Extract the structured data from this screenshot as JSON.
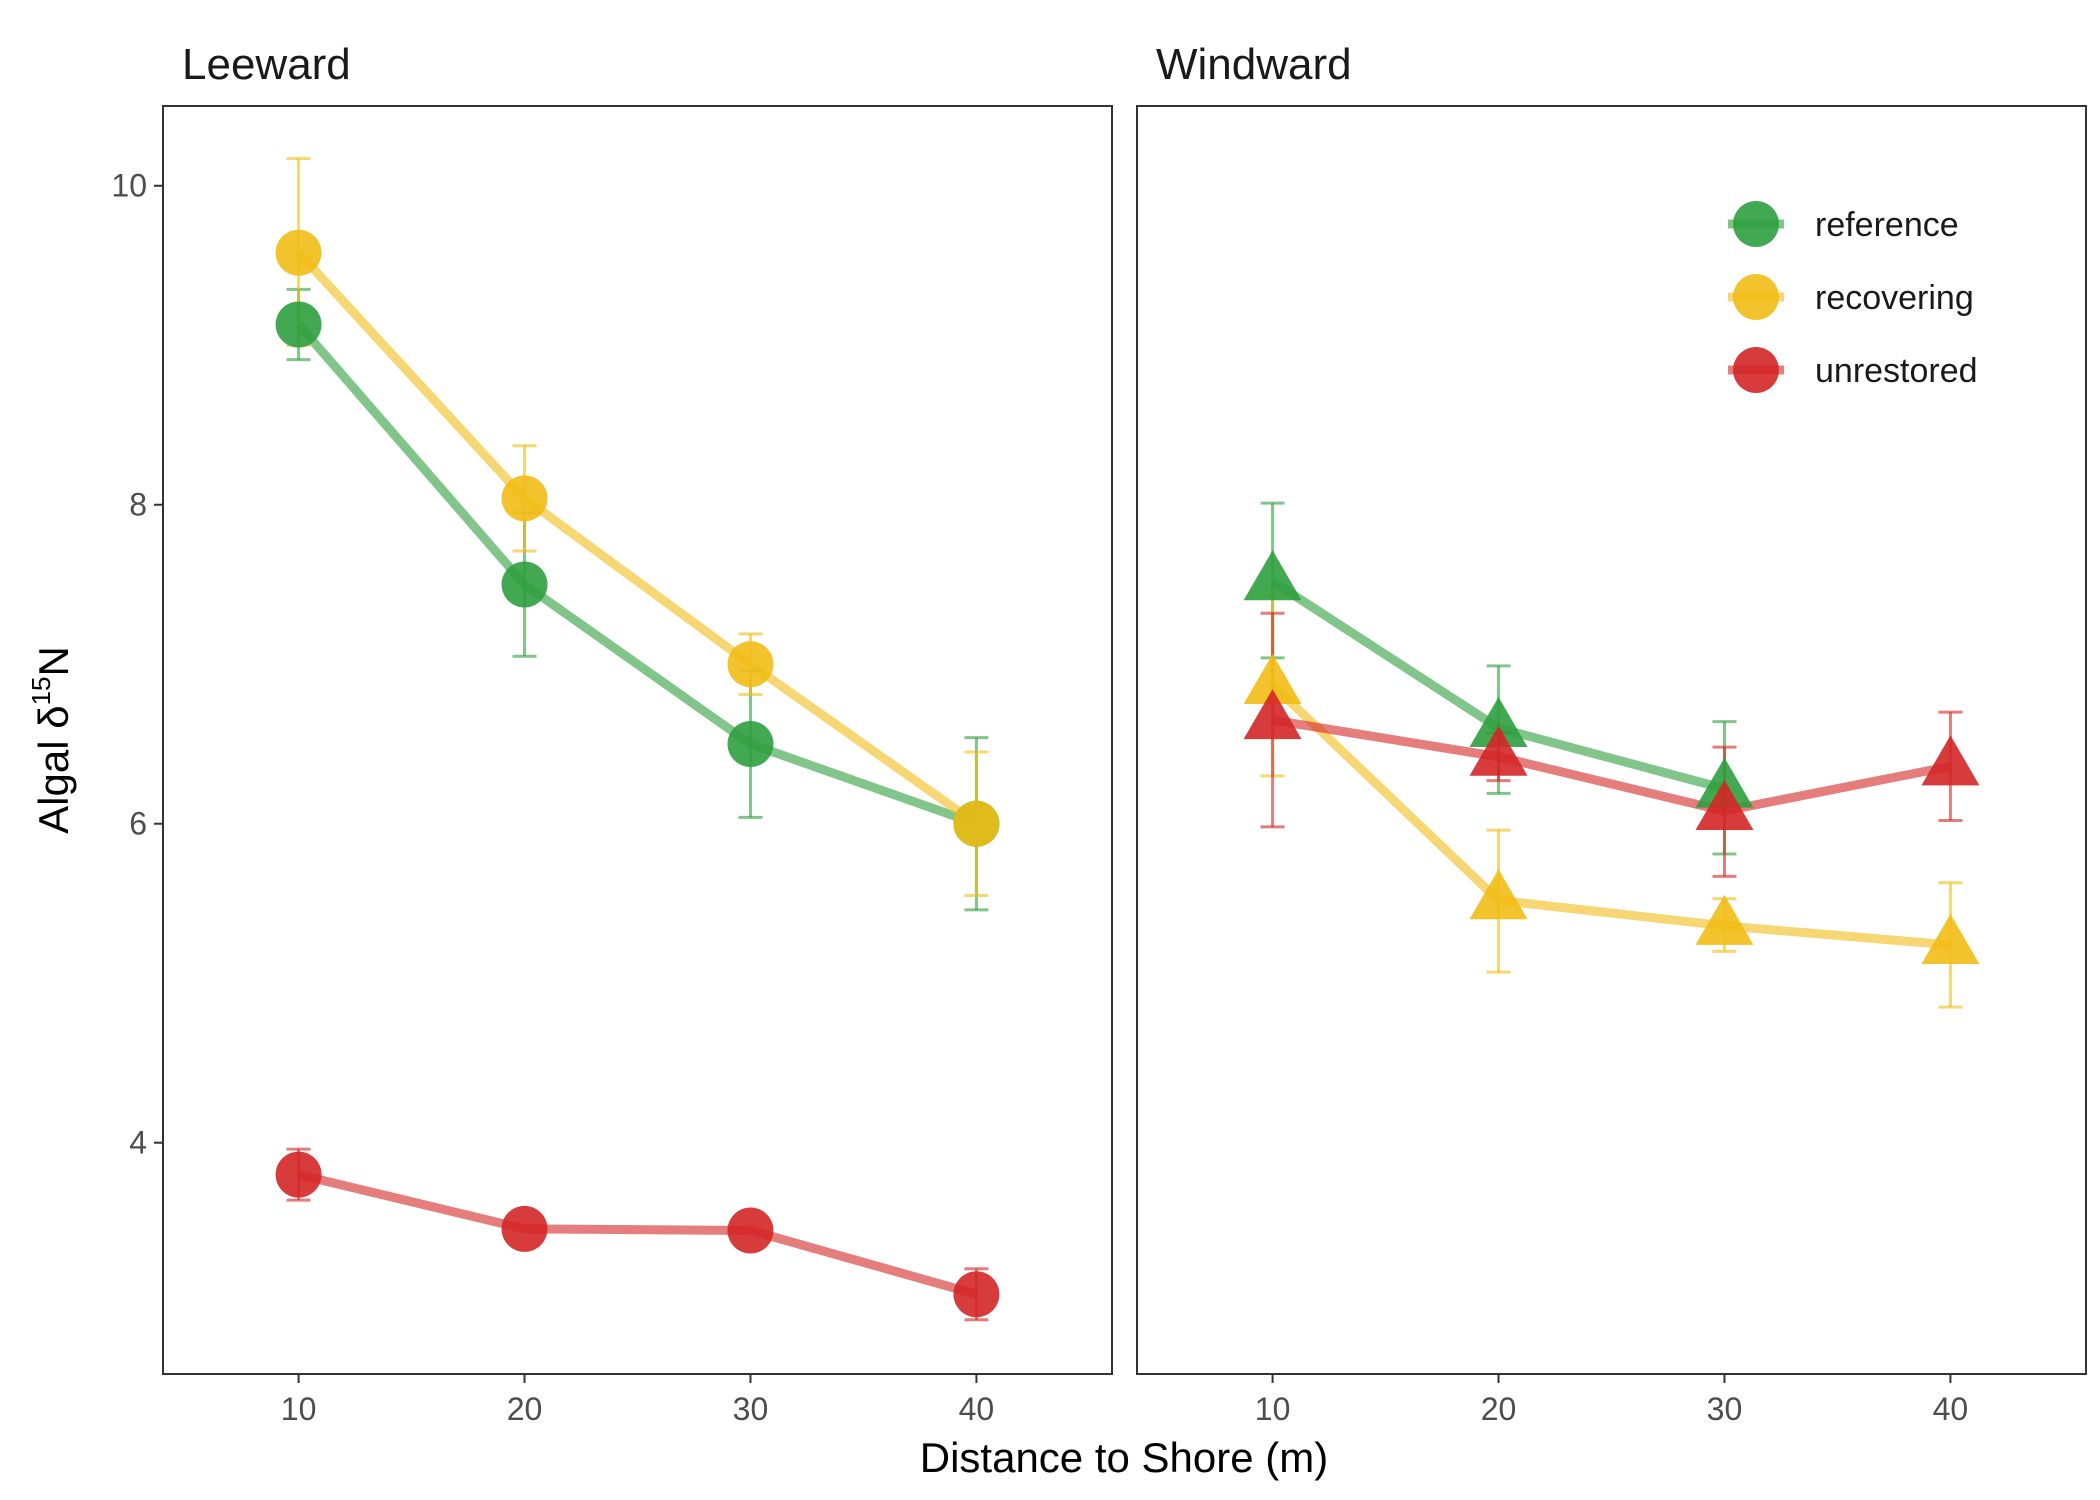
{
  "chart_data": {
    "type": "line",
    "xlabel": "Distance to Shore (m)",
    "ylabel": {
      "main": "Algal δ",
      "sup": "15",
      "tail": "N"
    },
    "x": [
      10,
      20,
      30,
      40
    ],
    "xlim": [
      4,
      46
    ],
    "ylim": [
      2.55,
      10.5
    ],
    "x_ticks": [
      "10",
      "20",
      "30",
      "40"
    ],
    "y_ticks": [
      "4",
      "6",
      "8",
      "10"
    ],
    "grid": false,
    "legend": {
      "position": "top-right",
      "entries": [
        "reference",
        "recovering",
        "unrestored"
      ]
    },
    "colors": {
      "reference": "#2e9e3e",
      "recovering": "#f2bc16",
      "unrestored": "#d42626"
    },
    "panels": [
      {
        "title": "Leeward",
        "marker": "circle",
        "series": [
          {
            "name": "reference",
            "values": [
              9.13,
              7.5,
              6.5,
              6.0
            ],
            "err_low": [
              8.91,
              7.05,
              6.04,
              5.46
            ],
            "err_high": [
              9.35,
              7.95,
              6.96,
              6.54
            ]
          },
          {
            "name": "recovering",
            "values": [
              9.58,
              8.04,
              7.0,
              6.0
            ],
            "err_low": [
              9.0,
              7.71,
              6.81,
              5.55
            ],
            "err_high": [
              10.17,
              8.37,
              7.19,
              6.45
            ]
          },
          {
            "name": "unrestored",
            "values": [
              3.8,
              3.46,
              3.45,
              3.05
            ],
            "err_low": [
              3.64,
              3.46,
              3.45,
              2.89
            ],
            "err_high": [
              3.96,
              3.46,
              3.45,
              3.21
            ]
          }
        ]
      },
      {
        "title": "Windward",
        "marker": "triangle",
        "series": [
          {
            "name": "reference",
            "values": [
              7.52,
              6.6,
              6.22,
              null
            ],
            "err_low": [
              7.04,
              6.19,
              5.81,
              null
            ],
            "err_high": [
              8.01,
              6.99,
              6.64,
              null
            ]
          },
          {
            "name": "recovering",
            "values": [
              6.87,
              5.52,
              5.36,
              5.24
            ],
            "err_low": [
              6.3,
              5.07,
              5.2,
              4.85
            ],
            "err_high": [
              7.43,
              5.96,
              5.53,
              5.63
            ]
          },
          {
            "name": "unrestored",
            "values": [
              6.65,
              6.42,
              6.08,
              6.36
            ],
            "err_low": [
              5.98,
              6.27,
              5.67,
              6.02
            ],
            "err_high": [
              7.32,
              6.57,
              6.48,
              6.7
            ]
          }
        ]
      }
    ]
  }
}
